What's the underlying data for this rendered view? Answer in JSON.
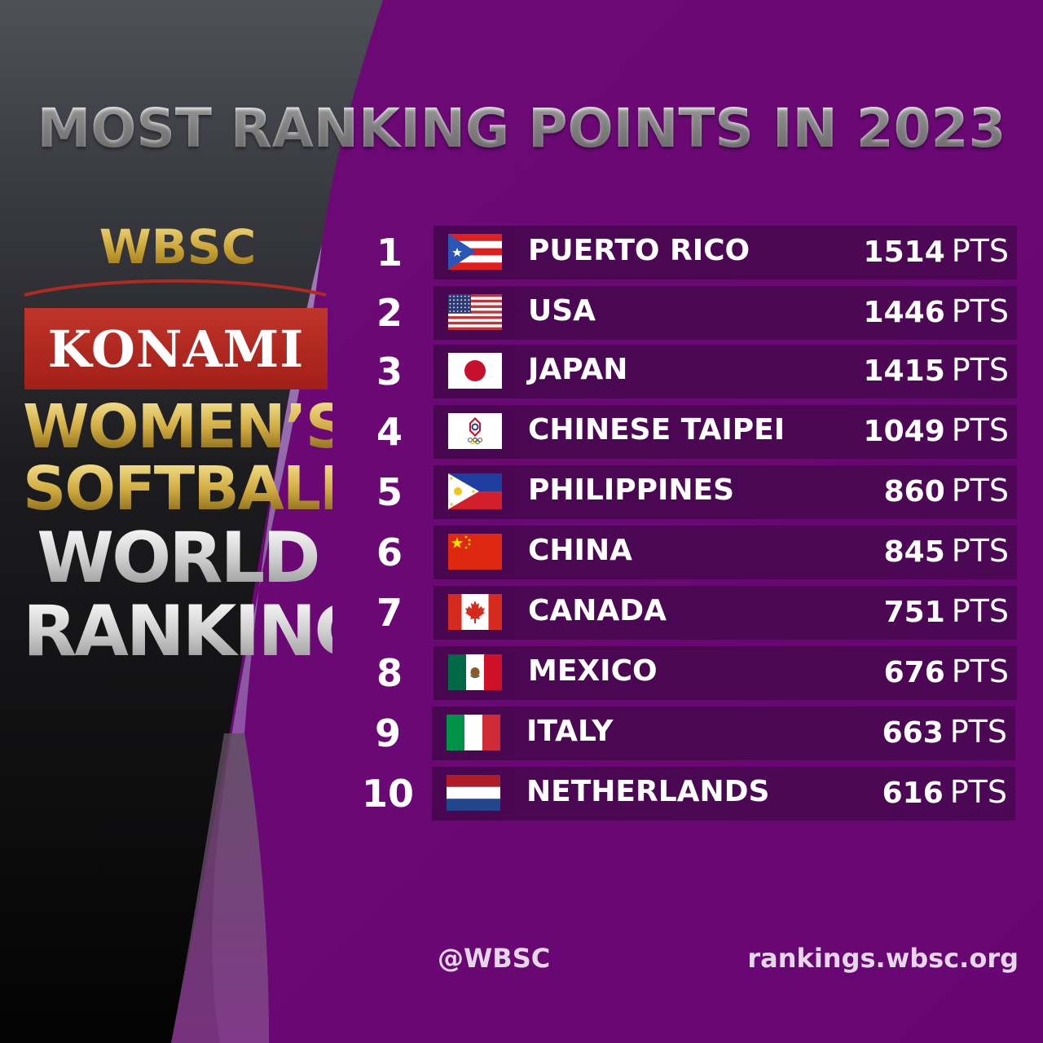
{
  "title": "MOST RANKING POINTS IN 2023",
  "brand": {
    "org": "WBSC",
    "sponsor": "KONAMI",
    "line1": "WOMEN’S",
    "line2": "SOFTBALL",
    "line3": "WORLD",
    "line4": "RANKING"
  },
  "unit": "PTS",
  "rankings": [
    {
      "rank": "1",
      "country": "PUERTO RICO",
      "points": "1514",
      "flag": "puerto-rico"
    },
    {
      "rank": "2",
      "country": "USA",
      "points": "1446",
      "flag": "usa"
    },
    {
      "rank": "3",
      "country": "JAPAN",
      "points": "1415",
      "flag": "japan"
    },
    {
      "rank": "4",
      "country": "CHINESE TAIPEI",
      "points": "1049",
      "flag": "chinese-taipei"
    },
    {
      "rank": "5",
      "country": "PHILIPPINES",
      "points": "860",
      "flag": "philippines"
    },
    {
      "rank": "6",
      "country": "CHINA",
      "points": "845",
      "flag": "china"
    },
    {
      "rank": "7",
      "country": "CANADA",
      "points": "751",
      "flag": "canada"
    },
    {
      "rank": "8",
      "country": "MEXICO",
      "points": "676",
      "flag": "mexico"
    },
    {
      "rank": "9",
      "country": "ITALY",
      "points": "663",
      "flag": "italy"
    },
    {
      "rank": "10",
      "country": "NETHERLANDS",
      "points": "616",
      "flag": "netherlands"
    }
  ],
  "footer": {
    "handle": "@WBSC",
    "website": "rankings.wbsc.org"
  },
  "colors": {
    "background": "#6c0775",
    "row_bar": "#4b0853",
    "left_panel_top": "#4d4e56",
    "left_panel_bottom": "#050505",
    "konami_red": "#b02a22",
    "gold": "#d1ad42"
  }
}
